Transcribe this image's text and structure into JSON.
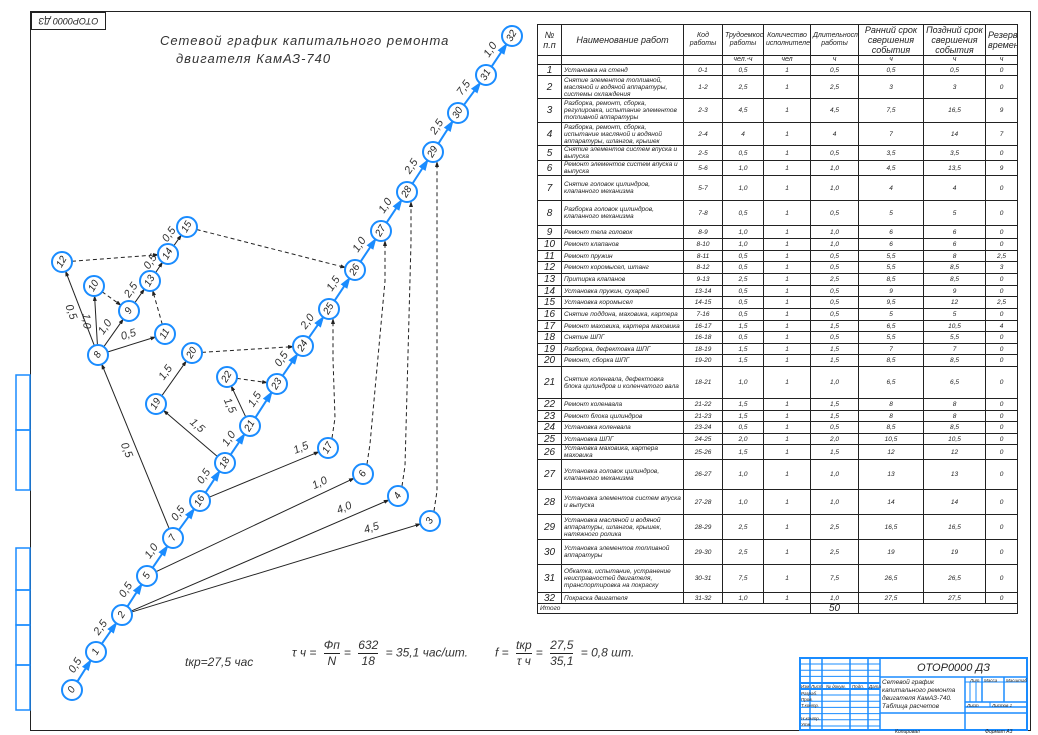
{
  "drawing_code": "ОТОР0000 ДЗ",
  "title": {
    "line1": "Сетевой график капитального ремонта",
    "line2": "двигателя КамАЗ-740"
  },
  "colors": {
    "critical_path": "#1a8cff",
    "node_stroke": "#1a8cff",
    "title_block": "#1a8cff",
    "lines": "#222222"
  },
  "network": {
    "nodes": [
      "0",
      "1",
      "2",
      "3",
      "4",
      "5",
      "6",
      "7",
      "8",
      "9",
      "10",
      "11",
      "12",
      "13",
      "14",
      "15",
      "16",
      "17",
      "18",
      "19",
      "20",
      "21",
      "22",
      "23",
      "24",
      "25",
      "26",
      "27",
      "28",
      "29",
      "30",
      "31",
      "32"
    ],
    "edges": [
      {
        "from": "0",
        "to": "1",
        "duration": "0,5",
        "type": "critical"
      },
      {
        "from": "1",
        "to": "2",
        "duration": "2,5",
        "type": "critical"
      },
      {
        "from": "2",
        "to": "3",
        "duration": "4,5",
        "type": "work"
      },
      {
        "from": "2",
        "to": "4",
        "duration": "4,0",
        "type": "work"
      },
      {
        "from": "2",
        "to": "5",
        "duration": "0,5",
        "type": "critical"
      },
      {
        "from": "5",
        "to": "6",
        "duration": "1,0",
        "type": "work"
      },
      {
        "from": "5",
        "to": "7",
        "duration": "1,0",
        "type": "critical"
      },
      {
        "from": "7",
        "to": "8",
        "duration": "0,5",
        "type": "work"
      },
      {
        "from": "8",
        "to": "9",
        "duration": "1,0",
        "type": "work"
      },
      {
        "from": "8",
        "to": "10",
        "duration": "1,0",
        "type": "work"
      },
      {
        "from": "8",
        "to": "11",
        "duration": "0,5",
        "type": "work"
      },
      {
        "from": "8",
        "to": "12",
        "duration": "0,5",
        "type": "work"
      },
      {
        "from": "9",
        "to": "13",
        "duration": "2,5",
        "type": "work"
      },
      {
        "from": "13",
        "to": "14",
        "duration": "0,5",
        "type": "work"
      },
      {
        "from": "14",
        "to": "15",
        "duration": "0,5",
        "type": "work"
      },
      {
        "from": "7",
        "to": "16",
        "duration": "0,5",
        "type": "critical"
      },
      {
        "from": "16",
        "to": "17",
        "duration": "1,5",
        "type": "work"
      },
      {
        "from": "16",
        "to": "18",
        "duration": "0,5",
        "type": "critical"
      },
      {
        "from": "18",
        "to": "19",
        "duration": "1,5",
        "type": "work"
      },
      {
        "from": "19",
        "to": "20",
        "duration": "1,5",
        "type": "work"
      },
      {
        "from": "18",
        "to": "21",
        "duration": "1,0",
        "type": "critical"
      },
      {
        "from": "21",
        "to": "22",
        "duration": "1,5",
        "type": "work"
      },
      {
        "from": "21",
        "to": "23",
        "duration": "1,5",
        "type": "critical"
      },
      {
        "from": "23",
        "to": "24",
        "duration": "0,5",
        "type": "critical"
      },
      {
        "from": "24",
        "to": "25",
        "duration": "2,0",
        "type": "critical"
      },
      {
        "from": "25",
        "to": "26",
        "duration": "1,5",
        "type": "critical"
      },
      {
        "from": "26",
        "to": "27",
        "duration": "1,0",
        "type": "critical"
      },
      {
        "from": "27",
        "to": "28",
        "duration": "1,0",
        "type": "critical"
      },
      {
        "from": "28",
        "to": "29",
        "duration": "2,5",
        "type": "critical"
      },
      {
        "from": "29",
        "to": "30",
        "duration": "2,5",
        "type": "critical"
      },
      {
        "from": "30",
        "to": "31",
        "duration": "7,5",
        "type": "critical"
      },
      {
        "from": "31",
        "to": "32",
        "duration": "1,0",
        "type": "critical"
      },
      {
        "from": "10",
        "to": "9",
        "duration": "",
        "type": "dummy"
      },
      {
        "from": "11",
        "to": "13",
        "duration": "",
        "type": "dummy"
      },
      {
        "from": "12",
        "to": "14",
        "duration": "",
        "type": "dummy"
      },
      {
        "from": "15",
        "to": "26",
        "duration": "",
        "type": "dummy"
      },
      {
        "from": "20",
        "to": "24",
        "duration": "",
        "type": "dummy"
      },
      {
        "from": "22",
        "to": "23",
        "duration": "",
        "type": "dummy"
      },
      {
        "from": "17",
        "to": "25",
        "duration": "",
        "type": "dummy"
      },
      {
        "from": "6",
        "to": "27",
        "duration": "",
        "type": "dummy"
      },
      {
        "from": "4",
        "to": "28",
        "duration": "",
        "type": "dummy"
      },
      {
        "from": "3",
        "to": "29",
        "duration": "",
        "type": "dummy"
      }
    ]
  },
  "table": {
    "headers": [
      "№ п.п",
      "Наименование работ",
      "Код работы",
      "Трудоемкость работы",
      "Количество исполнителей",
      "Длительность работы",
      "Ранний срок свершения события",
      "Поздний срок свершения события",
      "Резерв времени"
    ],
    "units": [
      "",
      "",
      "",
      "чел.-ч",
      "чел",
      "ч",
      "ч",
      "ч",
      "ч"
    ],
    "rows": [
      [
        "1",
        "Установка на стенд",
        "0-1",
        "0,5",
        "1",
        "0,5",
        "0,5",
        "0,5",
        "0"
      ],
      [
        "2",
        "Снятие элементов топливной, масляной и водяной аппаратуры, системы охлаждения",
        "1-2",
        "2,5",
        "1",
        "2,5",
        "3",
        "3",
        "0"
      ],
      [
        "3",
        "Разборка, ремонт, сборка, регулировка, испытание элементов топливной аппаратуры",
        "2-3",
        "4,5",
        "1",
        "4,5",
        "7,5",
        "16,5",
        "9"
      ],
      [
        "4",
        "Разборка, ремонт, сборка, испытание масляной и водяной аппаратуры, шлангов, крышек",
        "2-4",
        "4",
        "1",
        "4",
        "7",
        "14",
        "7"
      ],
      [
        "5",
        "Снятие элементов систем впуска и выпуска",
        "2-5",
        "0,5",
        "1",
        "0,5",
        "3,5",
        "3,5",
        "0"
      ],
      [
        "6",
        "Ремонт элементов систем впуска и выпуска",
        "5-6",
        "1,0",
        "1",
        "1,0",
        "4,5",
        "13,5",
        "9"
      ],
      [
        "7",
        "Снятие головок цилиндров, клапанного механизма",
        "5-7",
        "1,0",
        "1",
        "1,0",
        "4",
        "4",
        "0"
      ],
      [
        "8",
        "Разборка головок цилиндров, клапанного механизма",
        "7-8",
        "0,5",
        "1",
        "0,5",
        "5",
        "5",
        "0"
      ],
      [
        "9",
        "Ремонт тела головок",
        "8-9",
        "1,0",
        "1",
        "1,0",
        "6",
        "6",
        "0"
      ],
      [
        "10",
        "Ремонт клапанов",
        "8-10",
        "1,0",
        "1",
        "1,0",
        "6",
        "6",
        "0"
      ],
      [
        "11",
        "Ремонт пружин",
        "8-11",
        "0,5",
        "1",
        "0,5",
        "5,5",
        "8",
        "2,5"
      ],
      [
        "12",
        "Ремонт коромысел, штанг",
        "8-12",
        "0,5",
        "1",
        "0,5",
        "5,5",
        "8,5",
        "3"
      ],
      [
        "13",
        "Притирка клапанов",
        "9-13",
        "2,5",
        "1",
        "2,5",
        "8,5",
        "8,5",
        "0"
      ],
      [
        "14",
        "Установка пружин, сухарей",
        "13-14",
        "0,5",
        "1",
        "0,5",
        "9",
        "9",
        "0"
      ],
      [
        "15",
        "Установка коромысел",
        "14-15",
        "0,5",
        "1",
        "0,5",
        "9,5",
        "12",
        "2,5"
      ],
      [
        "16",
        "Снятие поддона, маховика, картера",
        "7-16",
        "0,5",
        "1",
        "0,5",
        "5",
        "5",
        "0"
      ],
      [
        "17",
        "Ремонт маховика, картера маховика",
        "16-17",
        "1,5",
        "1",
        "1,5",
        "6,5",
        "10,5",
        "4"
      ],
      [
        "18",
        "Снятие ШПГ",
        "16-18",
        "0,5",
        "1",
        "0,5",
        "5,5",
        "5,5",
        "0"
      ],
      [
        "19",
        "Разборка, дефектовка ШПГ",
        "18-19",
        "1,5",
        "1",
        "1,5",
        "7",
        "7",
        "0"
      ],
      [
        "20",
        "Ремонт, сборка ШПГ",
        "19-20",
        "1,5",
        "1",
        "1,5",
        "8,5",
        "8,5",
        "0"
      ],
      [
        "21",
        "Снятие коленвала, дефектовка блока цилиндров и коленчатого вала",
        "18-21",
        "1,0",
        "1",
        "1,0",
        "6,5",
        "6,5",
        "0"
      ],
      [
        "22",
        "Ремонт коленвала",
        "21-22",
        "1,5",
        "1",
        "1,5",
        "8",
        "8",
        "0"
      ],
      [
        "23",
        "Ремонт блока цилиндров",
        "21-23",
        "1,5",
        "1",
        "1,5",
        "8",
        "8",
        "0"
      ],
      [
        "24",
        "Установка коленвала",
        "23-24",
        "0,5",
        "1",
        "0,5",
        "8,5",
        "8,5",
        "0"
      ],
      [
        "25",
        "Установка ШПГ",
        "24-25",
        "2,0",
        "1",
        "2,0",
        "10,5",
        "10,5",
        "0"
      ],
      [
        "26",
        "Установка маховика, картера маховика",
        "25-26",
        "1,5",
        "1",
        "1,5",
        "12",
        "12",
        "0"
      ],
      [
        "27",
        "Установка головок цилиндров, клапанного механизма",
        "26-27",
        "1,0",
        "1",
        "1,0",
        "13",
        "13",
        "0"
      ],
      [
        "28",
        "Установка элементов систем впуска и выпуска",
        "27-28",
        "1,0",
        "1",
        "1,0",
        "14",
        "14",
        "0"
      ],
      [
        "29",
        "Установка масляной и водяной аппаратуры, шлангов, крышек, натяжного ролика",
        "28-29",
        "2,5",
        "1",
        "2,5",
        "16,5",
        "16,5",
        "0"
      ],
      [
        "30",
        "Установка элементов топливной аппаратуры",
        "29-30",
        "2,5",
        "1",
        "2,5",
        "19",
        "19",
        "0"
      ],
      [
        "31",
        "Обкатка, испытание, устранение неисправностей двигателя, транспортировка на покраску",
        "30-31",
        "7,5",
        "1",
        "7,5",
        "26,5",
        "26,5",
        "0"
      ],
      [
        "32",
        "Покраска двигателя",
        "31-32",
        "1,0",
        "1",
        "1,0",
        "27,5",
        "27,5",
        "0"
      ]
    ],
    "total_label": "Итого",
    "total_value": "50"
  },
  "formulas": {
    "tkp": "tкр=27,5 час",
    "tau_lhs": "τ ч =",
    "tau_num": "Фп",
    "tau_den": "N",
    "tau_num2": "632",
    "tau_den2": "18",
    "tau_result": "= 35,1 час/шт.",
    "f_lhs": "f =",
    "f_num": "tкр",
    "f_den": "τ ч",
    "f_num2": "27,5",
    "f_den2": "35,1",
    "f_result": "= 0,8 шт."
  },
  "title_block": {
    "code": "ОТОР0000 ДЗ",
    "name": "Сетевой график капитального ремонта двигателя КамАЗ-740. Таблица расчетов",
    "labels": {
      "izm": "Изм",
      "list": "Лист",
      "doc": "№ докум.",
      "sign": "Подп.",
      "date": "Дата",
      "razrab": "Разраб.",
      "prov": "Пров.",
      "tkontr": "Т.контр.",
      "nkontr": "Н.контр.",
      "utv": "Утв.",
      "lit": "Лит.",
      "mass": "Масса",
      "scale": "Масштаб",
      "sheet": "Лист",
      "sheets": "Листов 1"
    },
    "copied": "Копировал",
    "format": "Формат А3"
  }
}
